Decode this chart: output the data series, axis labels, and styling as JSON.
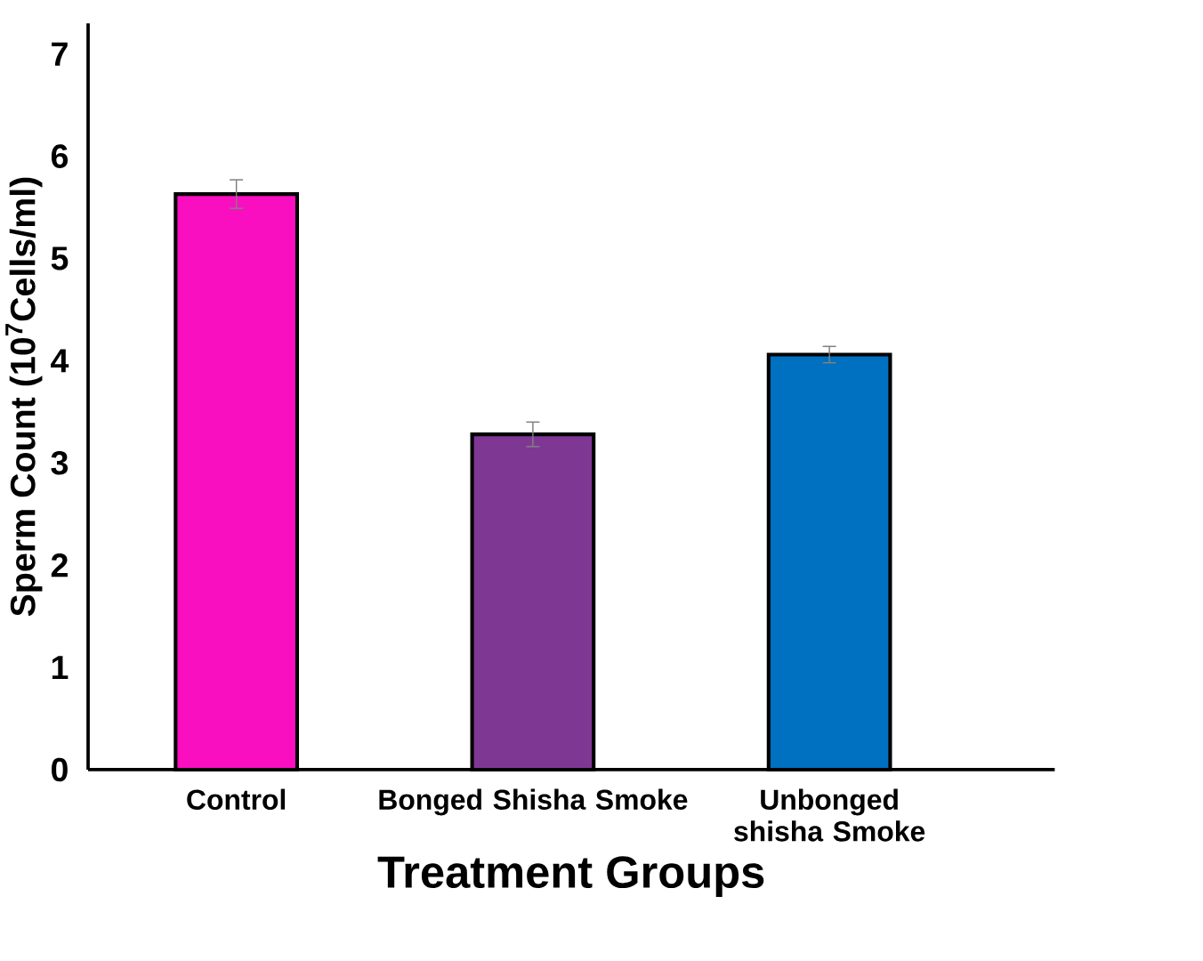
{
  "chart_data": {
    "type": "bar",
    "xlabel": "Treatment Groups",
    "ylabel": "Sperm Count (10$^{7}$Cells/ml)",
    "categories": [
      "Control",
      "Bonged Shisha Smoke",
      "Unbonged shisha Smoke"
    ],
    "values": [
      5.63,
      3.28,
      4.06
    ],
    "errors": [
      0.14,
      0.12,
      0.08
    ],
    "colors": [
      "#f90fbf",
      "#7f3794",
      "#0070c0"
    ],
    "ylim": [
      0,
      7.3
    ],
    "yticks": [
      0,
      1,
      2,
      3,
      4,
      5,
      6,
      7
    ],
    "grid": false
  }
}
